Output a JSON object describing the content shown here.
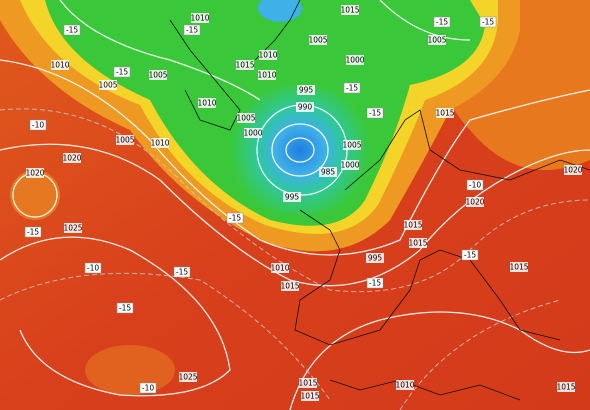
{
  "pressure_labels": [
    "1010",
    "1015",
    "1005",
    "1005",
    "1000",
    "1010",
    "1015",
    "1010",
    "1005",
    "1005",
    "1010",
    "995",
    "990",
    "1010",
    "1005",
    "1000",
    "985",
    "995",
    "1000",
    "1005",
    "1015",
    "1005",
    "1010",
    "1020",
    "1020",
    "1025",
    "1015",
    "1015",
    "1010",
    "1015",
    "1020",
    "1020",
    "1015",
    "1025",
    "1015",
    "1015",
    "1010",
    "1015",
    "995"
  ],
  "temperature_labels": [
    "-15",
    "-15",
    "-15",
    "-15",
    "-15",
    "-10",
    "-15",
    "-10",
    "-15",
    "-15",
    "-10",
    "-15",
    "-15",
    "-15",
    "-15",
    "-10",
    "-15"
  ]
}
